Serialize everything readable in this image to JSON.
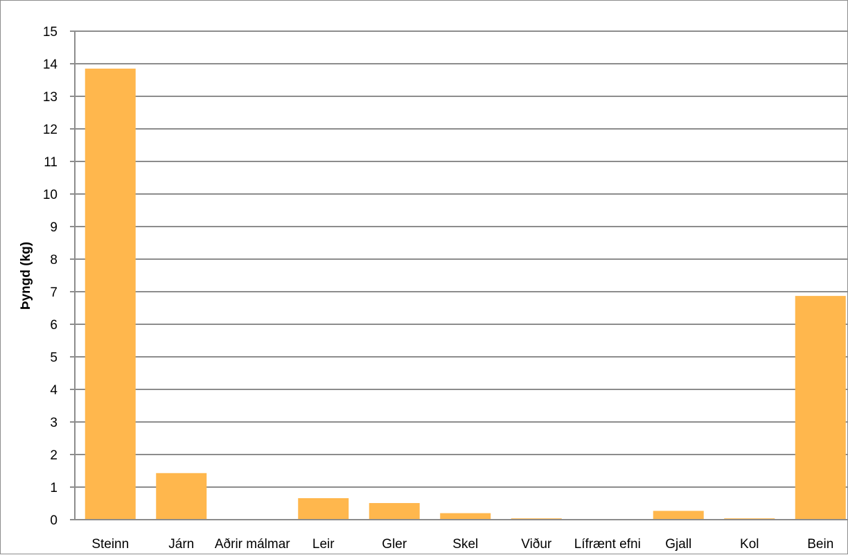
{
  "chart_data": {
    "type": "bar",
    "title": "",
    "xlabel": "",
    "ylabel": "Þyngd (kg)",
    "categories": [
      "Steinn",
      "Járn",
      "Aðrir málmar",
      "Leir",
      "Gler",
      "Skel",
      "Viður",
      "Lífrænt efni",
      "Gjall",
      "Kol",
      "Bein"
    ],
    "values": [
      13.85,
      1.43,
      0.0,
      0.66,
      0.51,
      0.2,
      0.04,
      0.0,
      0.27,
      0.04,
      6.87
    ],
    "ylim": [
      0,
      15
    ],
    "yticks": [
      0,
      1,
      2,
      3,
      4,
      5,
      6,
      7,
      8,
      9,
      10,
      11,
      12,
      13,
      14,
      15
    ],
    "grid": true,
    "legend": "none",
    "colors": {
      "bar": "#ffb74d",
      "grid": "#8c8c8c",
      "axis": "#8c8c8c"
    }
  }
}
